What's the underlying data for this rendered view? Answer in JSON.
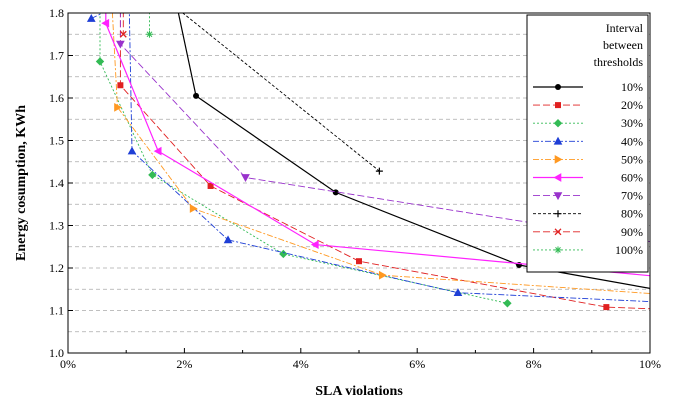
{
  "chart_data": {
    "type": "line",
    "title": "",
    "xlabel": "SLA violations",
    "ylabel": "Energy cosumption, KWh",
    "xlim": [
      0,
      10
    ],
    "ylim": [
      1.0,
      1.8
    ],
    "x_ticks": [
      0,
      2,
      4,
      6,
      8,
      10
    ],
    "x_tick_labels": [
      "0%",
      "2%",
      "4%",
      "6%",
      "8%",
      "10%"
    ],
    "y_ticks": [
      1.0,
      1.1,
      1.2,
      1.3,
      1.4,
      1.5,
      1.6,
      1.7,
      1.8
    ],
    "y_tick_labels": [
      "1.0",
      "1.1",
      "1.2",
      "1.3",
      "1.4",
      "1.5",
      "1.6",
      "1.7",
      "1.8"
    ],
    "grid": "horizontal-dashed",
    "legend": {
      "placement": "right",
      "title": [
        "Interval",
        "between",
        "thresholds"
      ]
    },
    "series": [
      {
        "name": "10%",
        "color": "#000000",
        "dash": "solid",
        "marker": "circle",
        "points": [
          [
            1.85,
            1.83
          ],
          [
            2.2,
            1.605
          ],
          [
            4.6,
            1.378
          ],
          [
            7.75,
            1.207
          ],
          [
            10.0,
            1.152
          ]
        ]
      },
      {
        "name": "20%",
        "color": "#e02020",
        "dash": "long",
        "marker": "square",
        "points": [
          [
            0.9,
            1.83
          ],
          [
            0.9,
            1.63
          ],
          [
            2.45,
            1.393
          ],
          [
            5.0,
            1.216
          ],
          [
            9.25,
            1.108
          ],
          [
            10.0,
            1.104
          ]
        ]
      },
      {
        "name": "30%",
        "color": "#33bb55",
        "dash": "dot",
        "marker": "diamond",
        "points": [
          [
            0.55,
            1.83
          ],
          [
            0.55,
            1.686
          ],
          [
            1.45,
            1.419
          ],
          [
            3.7,
            1.233
          ],
          [
            7.55,
            1.117
          ]
        ]
      },
      {
        "name": "40%",
        "color": "#1f3fd6",
        "dash": "dashdot",
        "marker": "triangle-up",
        "points": [
          [
            0.4,
            1.787
          ],
          [
            1.05,
            1.83
          ],
          [
            1.1,
            1.475
          ],
          [
            2.75,
            1.266
          ],
          [
            6.7,
            1.142
          ],
          [
            10.0,
            1.121
          ]
        ]
      },
      {
        "name": "50%",
        "color": "#ff9922",
        "dash": "dashdot",
        "marker": "triangle-right",
        "points": [
          [
            0.75,
            1.83
          ],
          [
            0.85,
            1.578
          ],
          [
            2.15,
            1.34
          ],
          [
            5.4,
            1.183
          ],
          [
            10.0,
            1.14
          ]
        ]
      },
      {
        "name": "60%",
        "color": "#ff22ff",
        "dash": "solid",
        "marker": "triangle-left",
        "points": [
          [
            0.65,
            1.83
          ],
          [
            0.65,
            1.776
          ],
          [
            1.55,
            1.475
          ],
          [
            4.25,
            1.255
          ],
          [
            10.0,
            1.182
          ]
        ]
      },
      {
        "name": "70%",
        "color": "#9933cc",
        "dash": "long",
        "marker": "triangle-down",
        "points": [
          [
            0.9,
            1.83
          ],
          [
            0.9,
            1.727
          ],
          [
            3.05,
            1.413
          ],
          [
            10.0,
            1.262
          ]
        ]
      },
      {
        "name": "80%",
        "color": "#000000",
        "dash": "short",
        "marker": "plus",
        "points": [
          [
            1.7,
            1.83
          ],
          [
            5.35,
            1.428
          ]
        ]
      },
      {
        "name": "90%",
        "color": "#e02020",
        "dash": "long",
        "marker": "x",
        "points": [
          [
            0.95,
            1.83
          ],
          [
            0.95,
            1.75
          ]
        ]
      },
      {
        "name": "100%",
        "color": "#33bb55",
        "dash": "dot",
        "marker": "star",
        "points": [
          [
            1.4,
            1.83
          ],
          [
            1.4,
            1.75
          ]
        ]
      }
    ]
  }
}
